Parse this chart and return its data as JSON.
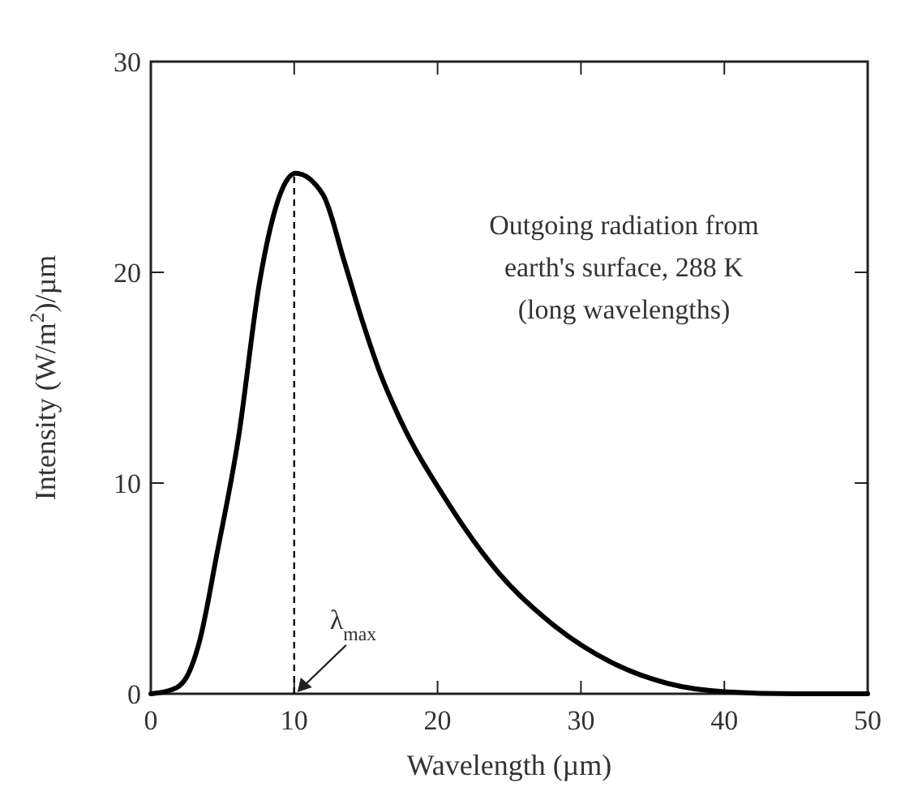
{
  "chart_data": {
    "type": "line",
    "xlabel": "Wavelength (µm)",
    "ylabel": "Intensity (W/m$^{2}$)/µm",
    "xlim": [
      0,
      50
    ],
    "ylim": [
      0,
      30
    ],
    "xticks": [
      0,
      10,
      20,
      30,
      40,
      50
    ],
    "yticks": [
      0,
      10,
      20,
      30
    ],
    "grid": false,
    "marker": "none",
    "line_style": "solid",
    "series": [
      {
        "color": "#000000",
        "x": [
          0,
          1.5,
          2.5,
          3.4,
          4.6,
          6.1,
          7.6,
          9.2,
          10.1,
          12,
          13.5,
          14.7,
          16,
          17.4,
          20.5,
          24.3,
          28.2,
          32.1,
          36,
          40,
          45,
          50
        ],
        "values": [
          0,
          0.2,
          0.8,
          2.5,
          6.6,
          12.1,
          19.6,
          24,
          24.7,
          23.7,
          20.5,
          17.8,
          15.2,
          13,
          9.3,
          5.7,
          3.2,
          1.5,
          0.5,
          0.1,
          0,
          0
        ]
      }
    ],
    "ref_lines": [
      {
        "axis": "x",
        "value": 10,
        "label": "λ$_{max}$",
        "line_style": "dashed",
        "color": "#000000"
      }
    ],
    "annotations": [
      "Outgoing radiation from\nearth's surface, 288 K\n(long wavelengths)"
    ]
  }
}
